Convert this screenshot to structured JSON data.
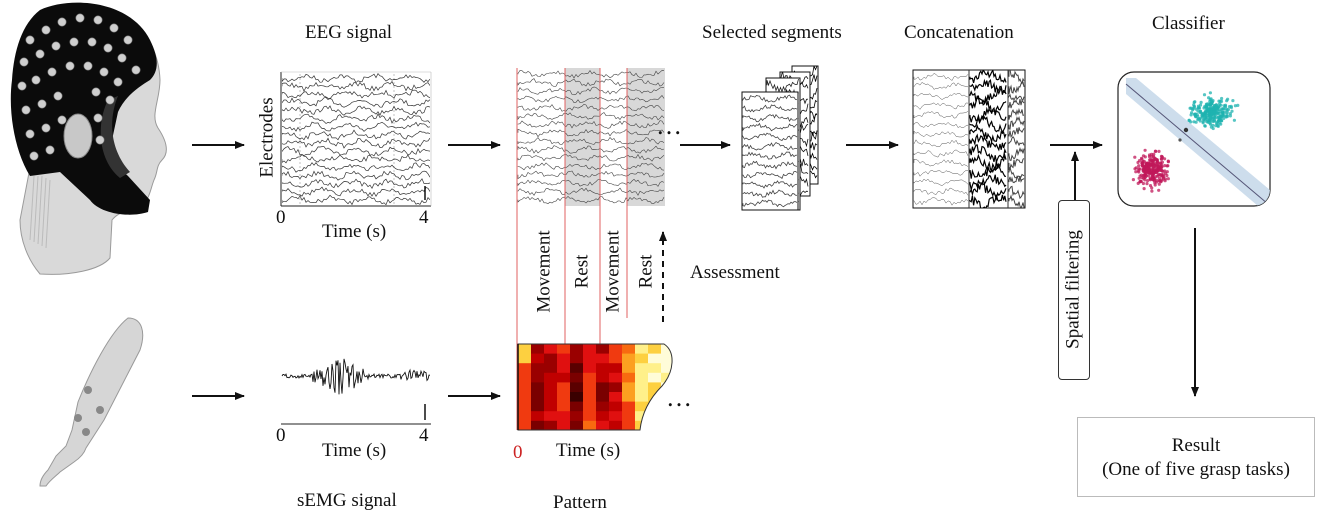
{
  "labels": {
    "eeg_signal": "EEG signal",
    "electrodes": "Electrodes",
    "eeg_time": "Time (s)",
    "eeg_x0": "0",
    "eeg_x4": "4",
    "selected_segments": "Selected segments",
    "concatenation": "Concatenation",
    "classifier": "Classifier",
    "movement_1": "Movement",
    "rest_1": "Rest",
    "movement_2": "Movement",
    "rest_2": "Rest",
    "assessment": "Assessment",
    "spatial_filtering": "Spatial filtering",
    "semg_time": "Time (s)",
    "semg_x0": "0",
    "semg_x4": "4",
    "semg_signal": "sEMG signal",
    "pattern_x0": "0",
    "pattern_time": "Time (s)",
    "pattern": "Pattern",
    "result_title": "Result",
    "result_detail": "(One of five grasp tasks)",
    "ellipsis": "…"
  },
  "colors": {
    "segment_divider": "#e06060",
    "rest_shading": "#d8d8d8",
    "class_a": "#1fb3b0",
    "class_b": "#c0185a",
    "margin_band": "#c8d9ea",
    "pattern_zero": "#cc2222"
  },
  "icons": [
    "head-eeg-cap-icon",
    "arm-semg-icon"
  ]
}
